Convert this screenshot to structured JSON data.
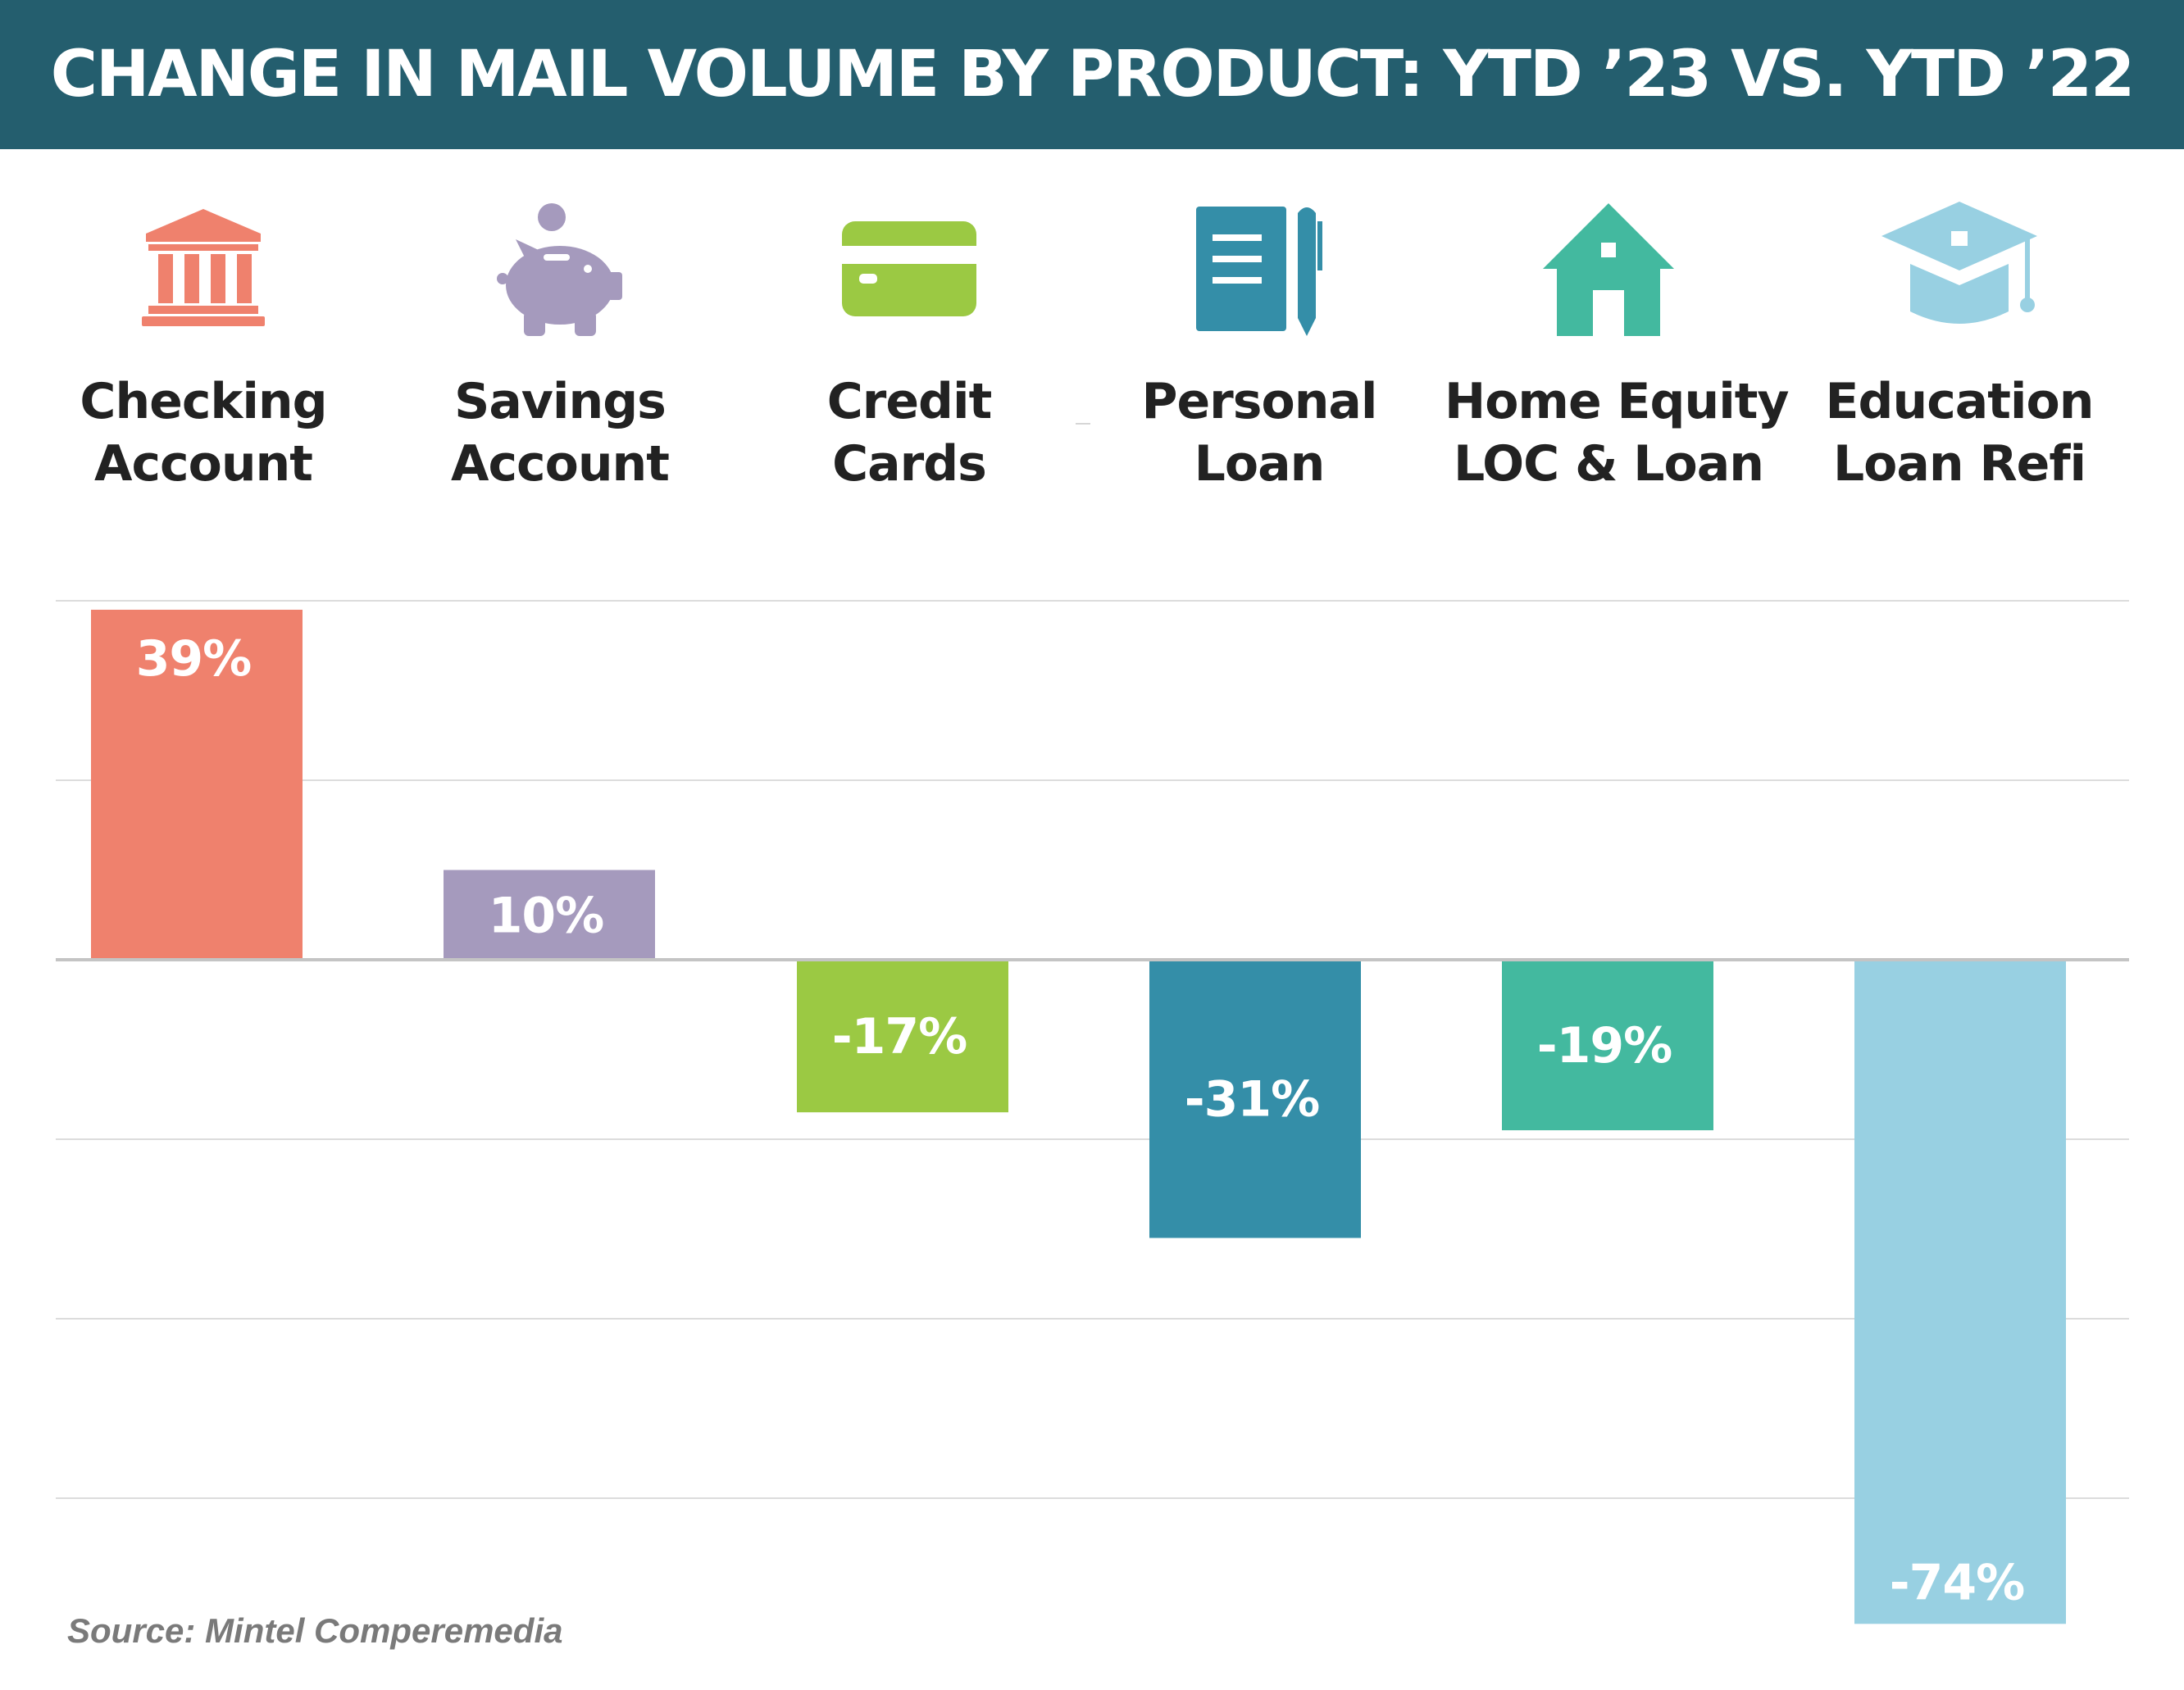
{
  "header": {
    "title": "CHANGE IN MAIL VOLUME BY PRODUCT: YTD ’23 VS. YTD ’22"
  },
  "products": [
    {
      "line1": "Checking",
      "line2": "Account",
      "icon": "bank-icon",
      "color": "#ef816d"
    },
    {
      "line1": "Savings",
      "line2": "Account",
      "icon": "piggy-bank-icon",
      "color": "#a59abd"
    },
    {
      "line1": "Credit",
      "line2": "Cards",
      "icon": "credit-card-icon",
      "color": "#9bc943"
    },
    {
      "line1": "Personal",
      "line2": "Loan",
      "icon": "notepad-pen-icon",
      "color": "#348ea8"
    },
    {
      "line1": "Home Equity",
      "line2": "LOC & Loan",
      "icon": "house-icon",
      "color": "#43b99f"
    },
    {
      "line1": "Education",
      "line2": "Loan Refi",
      "icon": "graduation-cap-icon",
      "color": "#98d0e2"
    }
  ],
  "chart_data": {
    "type": "bar",
    "categories": [
      "Checking Account",
      "Savings Account",
      "Credit Cards",
      "Personal Loan",
      "Home Equity LOC & Loan",
      "Education Loan Refi"
    ],
    "values": [
      39,
      10,
      -17,
      -31,
      -19,
      -74
    ],
    "data_labels": [
      "39%",
      "10%",
      "-17%",
      "-31%",
      "-19%",
      "-74%"
    ],
    "colors": [
      "#ef816d",
      "#a59abd",
      "#9bc943",
      "#348ea8",
      "#43b99f",
      "#98d0e2"
    ],
    "ylim": [
      -75,
      40
    ],
    "gridlines": [
      40,
      20,
      0,
      -20,
      -40,
      -60
    ],
    "grid": true,
    "legend": "none"
  },
  "source": "Source: Mintel Comperemedia"
}
